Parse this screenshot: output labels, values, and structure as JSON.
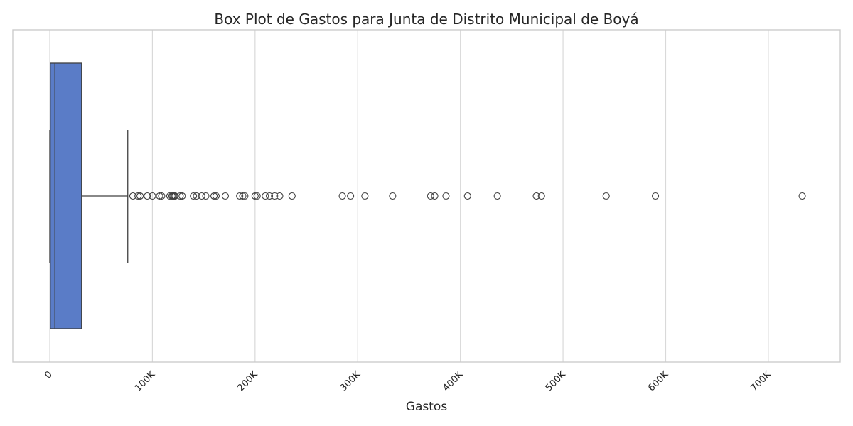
{
  "chart_data": {
    "type": "box",
    "title": "Box Plot de Gastos para Junta de Distrito Municipal de Boyá",
    "xlabel": "Gastos",
    "ylabel": "",
    "xlim": [
      -36000,
      770000
    ],
    "xticks": [
      0,
      100000,
      200000,
      300000,
      400000,
      500000,
      600000,
      700000
    ],
    "xtick_labels": [
      "0",
      "100K",
      "200K",
      "300K",
      "400K",
      "500K",
      "600K",
      "700K"
    ],
    "grid": "vertical",
    "box_color": "#5a7cc7",
    "stats": {
      "whisker_low": 0,
      "q1": 500,
      "median": 5000,
      "q3": 31000,
      "whisker_high": 76000
    },
    "outliers": [
      81000,
      86000,
      88000,
      95000,
      100000,
      107000,
      109000,
      117000,
      119000,
      120000,
      121000,
      122000,
      127000,
      129000,
      140000,
      143000,
      148000,
      152000,
      160000,
      162000,
      171000,
      185000,
      188000,
      190000,
      200000,
      202000,
      210000,
      214000,
      219000,
      224000,
      236000,
      285000,
      293000,
      307000,
      334000,
      371000,
      375000,
      386000,
      407000,
      436000,
      474000,
      479000,
      542000,
      590000,
      733000
    ]
  }
}
